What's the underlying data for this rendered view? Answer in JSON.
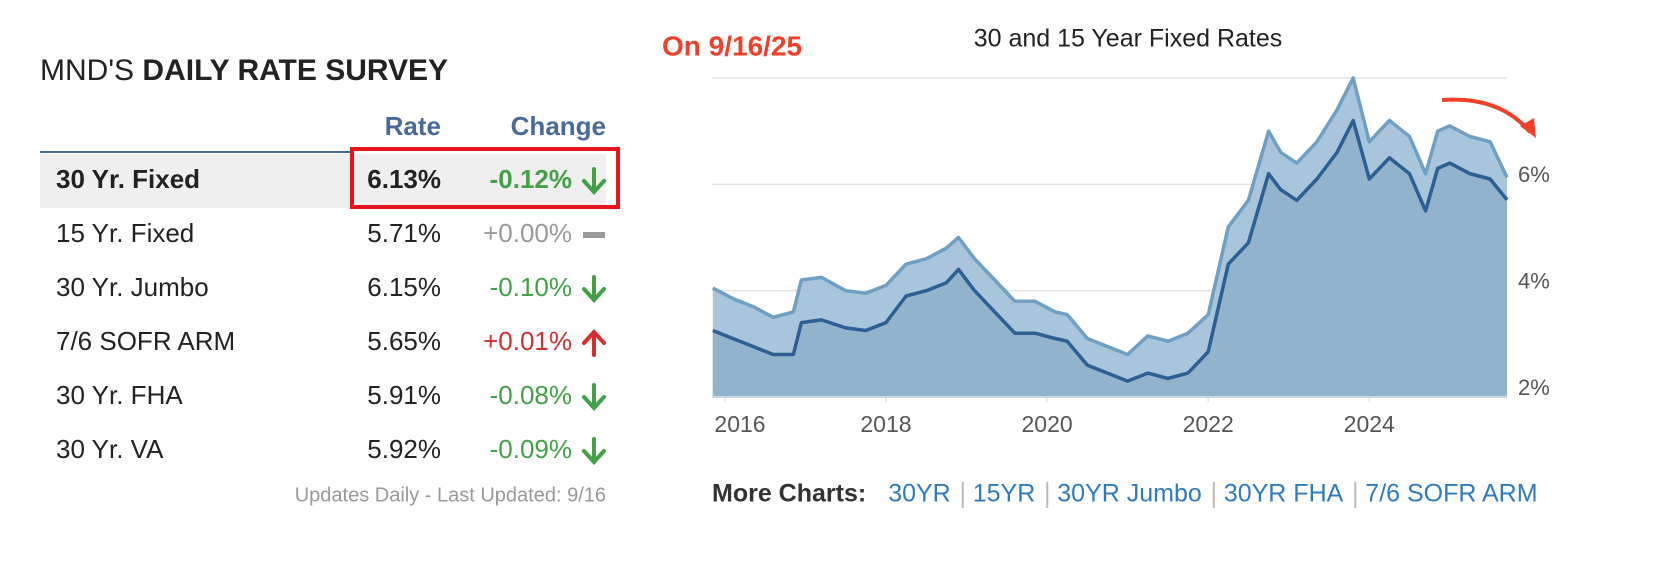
{
  "survey": {
    "title": {
      "normal": "MND'S",
      "bold": "DAILY RATE SURVEY"
    },
    "columns": [
      "Rate",
      "Change"
    ],
    "rows": [
      {
        "name": "30 Yr. Fixed",
        "rate": "6.13%",
        "change": "-0.12%",
        "trend": "down",
        "highlight": true
      },
      {
        "name": "15 Yr. Fixed",
        "rate": "5.71%",
        "change": "+0.00%",
        "trend": "flat"
      },
      {
        "name": "30 Yr. Jumbo",
        "rate": "6.15%",
        "change": "-0.10%",
        "trend": "down"
      },
      {
        "name": "7/6 SOFR ARM",
        "rate": "5.65%",
        "change": "+0.01%",
        "trend": "up"
      },
      {
        "name": "30 Yr. FHA",
        "rate": "5.91%",
        "change": "-0.08%",
        "trend": "down"
      },
      {
        "name": "30 Yr. VA",
        "rate": "5.92%",
        "change": "-0.09%",
        "trend": "down"
      }
    ],
    "footer": "Updates Daily - Last Updated: 9/16"
  },
  "chart_data": {
    "type": "area",
    "title": "30 and 15 Year Fixed Rates",
    "annotation": "On 9/16/25",
    "x": [
      2015.85,
      2016.1,
      2016.35,
      2016.6,
      2016.85,
      2016.95,
      2017.2,
      2017.5,
      2017.75,
      2018.0,
      2018.25,
      2018.5,
      2018.75,
      2018.9,
      2019.1,
      2019.35,
      2019.6,
      2019.85,
      2020.1,
      2020.25,
      2020.5,
      2020.75,
      2021.0,
      2021.25,
      2021.5,
      2021.75,
      2022.0,
      2022.25,
      2022.5,
      2022.75,
      2022.9,
      2023.1,
      2023.35,
      2023.6,
      2023.8,
      2024.0,
      2024.25,
      2024.5,
      2024.7,
      2024.85,
      2025.0,
      2025.25,
      2025.5,
      2025.71
    ],
    "series": [
      {
        "color": "#6f9fc2",
        "fill": "#a9c5db",
        "values": [
          4.05,
          3.85,
          3.7,
          3.5,
          3.6,
          4.2,
          4.25,
          4.0,
          3.95,
          4.1,
          4.5,
          4.6,
          4.8,
          5.0,
          4.6,
          4.2,
          3.8,
          3.8,
          3.6,
          3.55,
          3.1,
          2.95,
          2.8,
          3.15,
          3.05,
          3.2,
          3.55,
          5.2,
          5.7,
          7.0,
          6.6,
          6.4,
          6.8,
          7.4,
          8.0,
          6.8,
          7.2,
          6.9,
          6.2,
          7.0,
          7.1,
          6.9,
          6.8,
          6.13
        ]
      },
      {
        "color": "#2d5f94",
        "fill": "#93b3cd",
        "values": [
          3.25,
          3.1,
          2.95,
          2.8,
          2.8,
          3.4,
          3.45,
          3.3,
          3.25,
          3.4,
          3.9,
          4.0,
          4.15,
          4.4,
          4.0,
          3.6,
          3.2,
          3.2,
          3.1,
          3.05,
          2.6,
          2.45,
          2.3,
          2.45,
          2.35,
          2.45,
          2.85,
          4.5,
          4.9,
          6.2,
          5.9,
          5.7,
          6.1,
          6.6,
          7.2,
          6.1,
          6.5,
          6.2,
          5.5,
          6.3,
          6.4,
          6.2,
          6.1,
          5.71
        ]
      }
    ],
    "xlim": [
      2015.84,
      2025.71
    ],
    "xticks": [
      2016,
      2018,
      2020,
      2022,
      2024
    ],
    "ylim": [
      2,
      8
    ],
    "yticks": [
      {
        "value": 2,
        "label": "2%"
      },
      {
        "value": 4,
        "label": "4%"
      },
      {
        "value": 6,
        "label": "6%"
      }
    ],
    "grid": true
  },
  "more_charts": {
    "label": "More Charts:",
    "links": [
      "30YR",
      "15YR",
      "30YR Jumbo",
      "30YR FHA",
      "7/6 SOFR ARM"
    ]
  }
}
